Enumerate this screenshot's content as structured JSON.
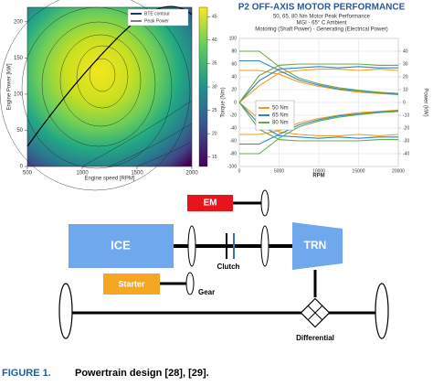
{
  "engine_map": {
    "type": "contour",
    "xlabel": "Engine speed [RPM]",
    "ylabel": "Engine Power [kW]",
    "xlim": [
      500,
      2000
    ],
    "xticks": [
      500,
      1000,
      1500,
      2000
    ],
    "ylim": [
      0,
      220
    ],
    "yticks": [
      0,
      50,
      100,
      150,
      200
    ],
    "colorbar": {
      "lim": [
        13,
        47
      ],
      "ticks": [
        15,
        20,
        25,
        30,
        35,
        40,
        45
      ]
    },
    "legend": [
      "BTE contour",
      "Peak Power"
    ]
  },
  "motor_performance": {
    "type": "line",
    "title": "P2 OFF-AXIS MOTOR PERFORMANCE",
    "subtitles": [
      "50, 65, 80 Nm Motor Peak Performance",
      "MGI - 65° C Ambient",
      "Motoring (Shaft Power) - Generating (Electrical Power)"
    ],
    "xlabel": "RPM",
    "ylabel": "Torque (Nm)",
    "y2label": "Power (kW)",
    "x": [
      0,
      2500,
      5000,
      7500,
      10000,
      12500,
      15000,
      17500,
      20000
    ],
    "xlim": [
      0,
      20000
    ],
    "xticks": [
      0,
      5000,
      10000,
      15000,
      20000
    ],
    "ylim": [
      -100,
      100
    ],
    "yticks": [
      -100,
      -80,
      -60,
      -40,
      -20,
      0,
      20,
      40,
      60,
      80,
      100
    ],
    "y2lim": [
      -50,
      50
    ],
    "y2ticks": [
      -40,
      -30,
      -20,
      -10,
      0,
      10,
      20,
      30,
      40
    ],
    "grid": true,
    "series": [
      {
        "name": "50 Nm",
        "color": "#f39c1f",
        "motoring_torque": [
          50,
          50,
          44,
          32,
          25,
          20,
          16,
          14,
          12
        ],
        "motoring_power": [
          0,
          13,
          23,
          25,
          26,
          26,
          25,
          26,
          25
        ],
        "generating_torque": [
          -50,
          -50,
          -44,
          -32,
          -25,
          -20,
          -16,
          -14,
          -12
        ],
        "generating_power": [
          0,
          -13,
          -23,
          -25,
          -26,
          -26,
          -25,
          -26,
          -25
        ]
      },
      {
        "name": "65 Nm",
        "color": "#2e86c1",
        "motoring_torque": [
          65,
          65,
          50,
          35,
          27,
          21,
          18,
          15,
          13
        ],
        "motoring_power": [
          0,
          17,
          26,
          27,
          28,
          27,
          28,
          27,
          27
        ],
        "generating_torque": [
          -65,
          -65,
          -50,
          -35,
          -27,
          -21,
          -18,
          -15,
          -13
        ],
        "generating_power": [
          0,
          -17,
          -26,
          -27,
          -28,
          -27,
          -28,
          -27,
          -27
        ]
      },
      {
        "name": "80 Nm",
        "color": "#6aa84f",
        "motoring_torque": [
          80,
          80,
          56,
          38,
          29,
          23,
          19,
          16,
          14
        ],
        "motoring_power": [
          0,
          21,
          29,
          30,
          30,
          30,
          30,
          29,
          29
        ],
        "generating_torque": [
          -80,
          -80,
          -56,
          -38,
          -29,
          -23,
          -19,
          -16,
          -14
        ],
        "generating_power": [
          0,
          -21,
          -29,
          -30,
          -30,
          -30,
          -30,
          -29,
          -29
        ]
      }
    ]
  },
  "diagram": {
    "nodes": [
      {
        "label": "EM"
      },
      {
        "label": "ICE"
      },
      {
        "label": "TRN"
      },
      {
        "label": "Clutch"
      },
      {
        "label": "Starter"
      },
      {
        "label": "Gear"
      },
      {
        "label": "Differential"
      }
    ]
  },
  "caption": {
    "label": "FIGURE 1.",
    "text": "Powertrain design [28], [29]."
  }
}
